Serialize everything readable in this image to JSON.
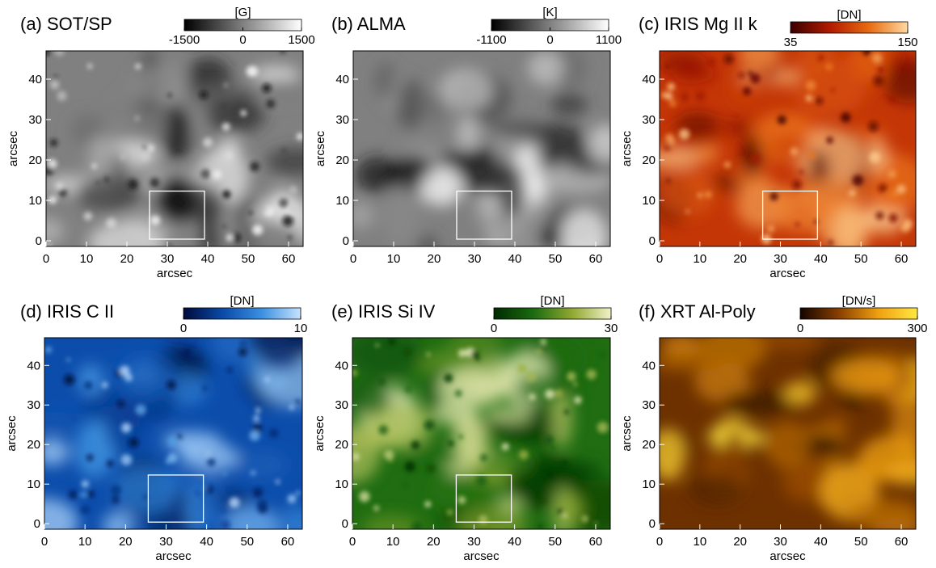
{
  "chart_data": [
    {
      "type": "image",
      "title": "(a) SOT/SP",
      "colorbar_label": "[G]",
      "clim": [
        -1500,
        1500
      ],
      "colorbar_ticks": [
        -1500,
        0,
        1500
      ],
      "colormap": [
        "#000000",
        "#ffffff"
      ],
      "xlabel": "arcsec",
      "ylabel": "arcsec",
      "xlim": [
        0,
        63.6
      ],
      "ylim": [
        -1.4,
        47
      ],
      "xticks": [
        0,
        10,
        20,
        30,
        40,
        50,
        60
      ],
      "yticks": [
        0,
        10,
        20,
        30,
        40
      ],
      "highlight_box": {
        "xlim": [
          25.6,
          39.2
        ],
        "ylim": [
          0.4,
          12.3
        ]
      }
    },
    {
      "type": "image",
      "title": "(b) ALMA",
      "colorbar_label": "[K]",
      "clim": [
        -1100,
        1100
      ],
      "colorbar_ticks": [
        -1100,
        0,
        1100
      ],
      "colormap": [
        "#000000",
        "#ffffff"
      ],
      "ylabel": "arcsec",
      "xlim": [
        0,
        63.6
      ],
      "ylim": [
        -1.4,
        47
      ],
      "xticks": [
        0,
        10,
        20,
        30,
        40,
        50,
        60
      ],
      "yticks": [
        0,
        10,
        20,
        30,
        40
      ],
      "highlight_box": {
        "xlim": [
          25.6,
          39.2
        ],
        "ylim": [
          0.4,
          12.3
        ]
      }
    },
    {
      "type": "image",
      "title": "(c) IRIS Mg II k",
      "colorbar_label": "[DN]",
      "clim": [
        35,
        150
      ],
      "colorbar_ticks": [
        35,
        150
      ],
      "colormap": [
        "#3a0000",
        "#b01a00",
        "#e86a10",
        "#ffd9a0"
      ],
      "xlabel": "arcsec",
      "ylabel": "arcsec",
      "xlim": [
        0,
        63.6
      ],
      "ylim": [
        -1.4,
        47
      ],
      "xticks": [
        0,
        10,
        20,
        30,
        40,
        50,
        60
      ],
      "yticks": [
        0,
        10,
        20,
        30,
        40
      ],
      "highlight_box": {
        "xlim": [
          25.6,
          39.2
        ],
        "ylim": [
          0.4,
          12.3
        ]
      }
    },
    {
      "type": "image",
      "title": "(d) IRIS C II",
      "colorbar_label": "[DN]",
      "clim": [
        0,
        10
      ],
      "colorbar_ticks": [
        0,
        10
      ],
      "colormap": [
        "#000a3a",
        "#0a4aa8",
        "#3a90e0",
        "#c8e2ff"
      ],
      "xlabel": "arcsec",
      "ylabel": "arcsec",
      "xlim": [
        0,
        63.6
      ],
      "ylim": [
        -1.4,
        47
      ],
      "xticks": [
        0,
        10,
        20,
        30,
        40,
        50,
        60
      ],
      "yticks": [
        0,
        10,
        20,
        30,
        40
      ],
      "highlight_box": {
        "xlim": [
          25.6,
          39.2
        ],
        "ylim": [
          0.4,
          12.3
        ]
      }
    },
    {
      "type": "image",
      "title": "(e) IRIS Si IV",
      "colorbar_label": "[DN]",
      "clim": [
        0,
        30
      ],
      "colorbar_ticks": [
        0,
        30
      ],
      "colormap": [
        "#002a00",
        "#1a6a10",
        "#90a830",
        "#f2f2c8"
      ],
      "xlabel": "arcsec",
      "ylabel": "arcsec",
      "xlim": [
        0,
        63.6
      ],
      "ylim": [
        -1.4,
        47
      ],
      "xticks": [
        0,
        10,
        20,
        30,
        40,
        50,
        60
      ],
      "yticks": [
        0,
        10,
        20,
        30,
        40
      ],
      "highlight_box": {
        "xlim": [
          25.6,
          39.2
        ],
        "ylim": [
          0.4,
          12.3
        ]
      }
    },
    {
      "type": "image",
      "title": "(f) XRT Al-Poly",
      "colorbar_label": "[DN/s]",
      "clim": [
        0,
        300
      ],
      "colorbar_ticks": [
        0,
        300
      ],
      "colormap": [
        "#140400",
        "#8a4000",
        "#f0a010",
        "#ffe840"
      ],
      "xlabel": "arcsec",
      "ylabel": "arcsec",
      "xlim": [
        0,
        63.6
      ],
      "ylim": [
        -1.4,
        47
      ],
      "xticks": [
        0,
        10,
        20,
        30,
        40,
        50,
        60
      ],
      "yticks": [
        0,
        10,
        20,
        30,
        40
      ]
    }
  ]
}
